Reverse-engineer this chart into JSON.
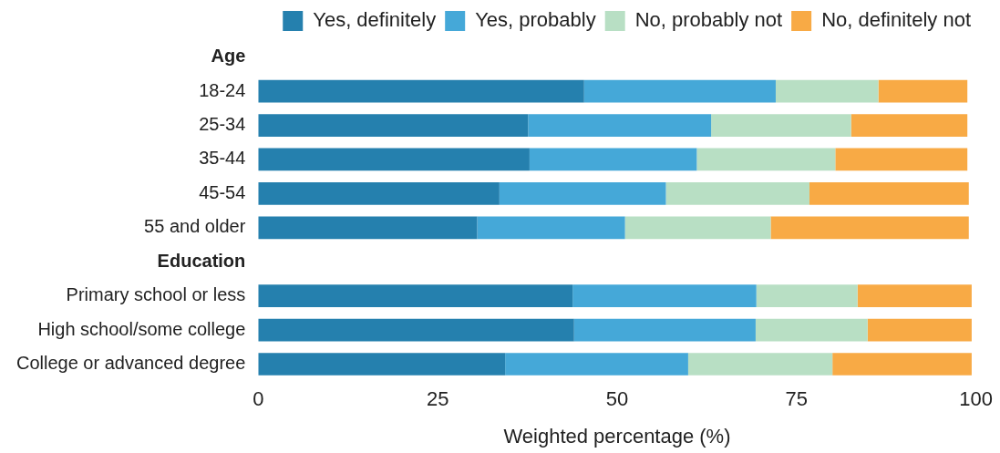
{
  "chart_data": {
    "type": "bar",
    "orientation": "horizontal",
    "stacked": true,
    "xlabel": "Weighted percentage (%)",
    "categories": [
      "Age",
      "18-24",
      "25-34",
      "35-44",
      "45-54",
      "55 and older",
      "Education",
      "Primary school or less",
      "High school/some college",
      "College or advanced degree"
    ],
    "series": [
      {
        "name": "Yes, definitely",
        "color": "#2580ae",
        "values": [
          null,
          45.4,
          37.6,
          37.8,
          33.6,
          30.5,
          null,
          43.8,
          44.0,
          34.4
        ]
      },
      {
        "name": "Yes, probably",
        "color": "#45a8d8",
        "values": [
          null,
          26.7,
          25.5,
          23.3,
          23.2,
          20.6,
          null,
          25.6,
          25.3,
          25.5
        ]
      },
      {
        "name": "No, probably not",
        "color": "#b8dfc4",
        "values": [
          null,
          14.3,
          19.5,
          19.3,
          20.0,
          20.3,
          null,
          14.1,
          15.6,
          20.1
        ]
      },
      {
        "name": "No, definitely not",
        "color": "#f8aa45",
        "values": [
          null,
          12.4,
          16.2,
          18.4,
          22.2,
          27.6,
          null,
          15.9,
          14.5,
          19.4
        ]
      }
    ],
    "xlim": [
      0,
      100
    ],
    "xticks": [
      0,
      25,
      50,
      75,
      100
    ],
    "grid": false,
    "legend": "top right"
  }
}
